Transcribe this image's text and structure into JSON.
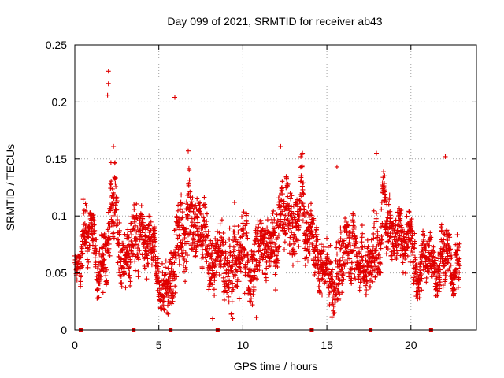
{
  "chart_data": {
    "type": "scatter",
    "title": "Day 099 of 2021, SRMTID for receiver ab43",
    "xlabel": "GPS time / hours",
    "ylabel": "SRMTID / TECUs",
    "xlim": [
      0,
      23.9
    ],
    "ylim": [
      0,
      0.25
    ],
    "x_ticks": [
      0,
      5,
      10,
      15,
      20
    ],
    "x_tick_labels": [
      "0",
      "5",
      "10",
      "15",
      "20"
    ],
    "y_ticks": [
      0,
      0.05,
      0.1,
      0.15,
      0.2,
      0.25
    ],
    "y_tick_labels": [
      "0",
      "0.05",
      "0.1",
      "0.15",
      "0.2",
      "0.25"
    ],
    "grid": true,
    "marker": "+",
    "color": "#e00000",
    "series": [
      {
        "name": "SRMTID",
        "sampling_hours": 0.0083,
        "envelope": [
          {
            "x": 0.0,
            "lo": 0.04,
            "hi": 0.065
          },
          {
            "x": 0.3,
            "lo": 0.02,
            "hi": 0.065
          },
          {
            "x": 0.5,
            "lo": 0.03,
            "hi": 0.115
          },
          {
            "x": 1.0,
            "lo": 0.025,
            "hi": 0.1
          },
          {
            "x": 1.6,
            "lo": 0.03,
            "hi": 0.105
          },
          {
            "x": 2.0,
            "lo": 0.045,
            "hi": 0.16
          },
          {
            "x": 2.5,
            "lo": 0.04,
            "hi": 0.145
          },
          {
            "x": 3.0,
            "lo": 0.035,
            "hi": 0.11
          },
          {
            "x": 3.6,
            "lo": 0.04,
            "hi": 0.135
          },
          {
            "x": 4.2,
            "lo": 0.04,
            "hi": 0.11
          },
          {
            "x": 5.0,
            "lo": 0.02,
            "hi": 0.08
          },
          {
            "x": 5.5,
            "lo": 0.015,
            "hi": 0.075
          },
          {
            "x": 6.0,
            "lo": 0.03,
            "hi": 0.155
          },
          {
            "x": 6.8,
            "lo": 0.035,
            "hi": 0.155
          },
          {
            "x": 7.6,
            "lo": 0.03,
            "hi": 0.12
          },
          {
            "x": 8.2,
            "lo": 0.01,
            "hi": 0.1
          },
          {
            "x": 9.0,
            "lo": 0.02,
            "hi": 0.095
          },
          {
            "x": 9.5,
            "lo": 0.01,
            "hi": 0.125
          },
          {
            "x": 10.3,
            "lo": 0.02,
            "hi": 0.11
          },
          {
            "x": 11.0,
            "lo": 0.015,
            "hi": 0.095
          },
          {
            "x": 11.7,
            "lo": 0.03,
            "hi": 0.105
          },
          {
            "x": 12.2,
            "lo": 0.04,
            "hi": 0.16
          },
          {
            "x": 12.8,
            "lo": 0.04,
            "hi": 0.12
          },
          {
            "x": 13.5,
            "lo": 0.045,
            "hi": 0.155
          },
          {
            "x": 14.2,
            "lo": 0.035,
            "hi": 0.1
          },
          {
            "x": 14.8,
            "lo": 0.03,
            "hi": 0.09
          },
          {
            "x": 15.3,
            "lo": 0.01,
            "hi": 0.08
          },
          {
            "x": 15.9,
            "lo": 0.03,
            "hi": 0.13
          },
          {
            "x": 16.6,
            "lo": 0.03,
            "hi": 0.1
          },
          {
            "x": 17.3,
            "lo": 0.03,
            "hi": 0.09
          },
          {
            "x": 18.0,
            "lo": 0.05,
            "hi": 0.155
          },
          {
            "x": 18.8,
            "lo": 0.05,
            "hi": 0.135
          },
          {
            "x": 19.4,
            "lo": 0.04,
            "hi": 0.12
          },
          {
            "x": 20.0,
            "lo": 0.03,
            "hi": 0.1
          },
          {
            "x": 20.8,
            "lo": 0.025,
            "hi": 0.09
          },
          {
            "x": 21.5,
            "lo": 0.03,
            "hi": 0.09
          },
          {
            "x": 22.2,
            "lo": 0.03,
            "hi": 0.1
          },
          {
            "x": 22.9,
            "lo": 0.03,
            "hi": 0.085
          }
        ],
        "peaks": [
          {
            "x": 2.0,
            "y": 0.227
          },
          {
            "x": 2.0,
            "y": 0.216
          },
          {
            "x": 1.95,
            "y": 0.206
          },
          {
            "x": 5.95,
            "y": 0.204
          },
          {
            "x": 2.3,
            "y": 0.161
          },
          {
            "x": 6.75,
            "y": 0.157
          },
          {
            "x": 12.25,
            "y": 0.161
          },
          {
            "x": 17.95,
            "y": 0.155
          },
          {
            "x": 22.05,
            "y": 0.152
          },
          {
            "x": 13.55,
            "y": 0.155
          },
          {
            "x": 15.6,
            "y": 0.143
          },
          {
            "x": 5.55,
            "y": 0.014
          },
          {
            "x": 8.2,
            "y": 0.01
          },
          {
            "x": 10.8,
            "y": 0.011
          },
          {
            "x": 15.3,
            "y": 0.011
          },
          {
            "x": 9.4,
            "y": 0.01
          }
        ]
      },
      {
        "name": "baseline markers",
        "x": [
          0.35,
          3.5,
          5.7,
          8.5,
          14.1,
          17.6,
          21.2
        ],
        "y": [
          0,
          0,
          0,
          0,
          0,
          0,
          0
        ]
      }
    ]
  }
}
